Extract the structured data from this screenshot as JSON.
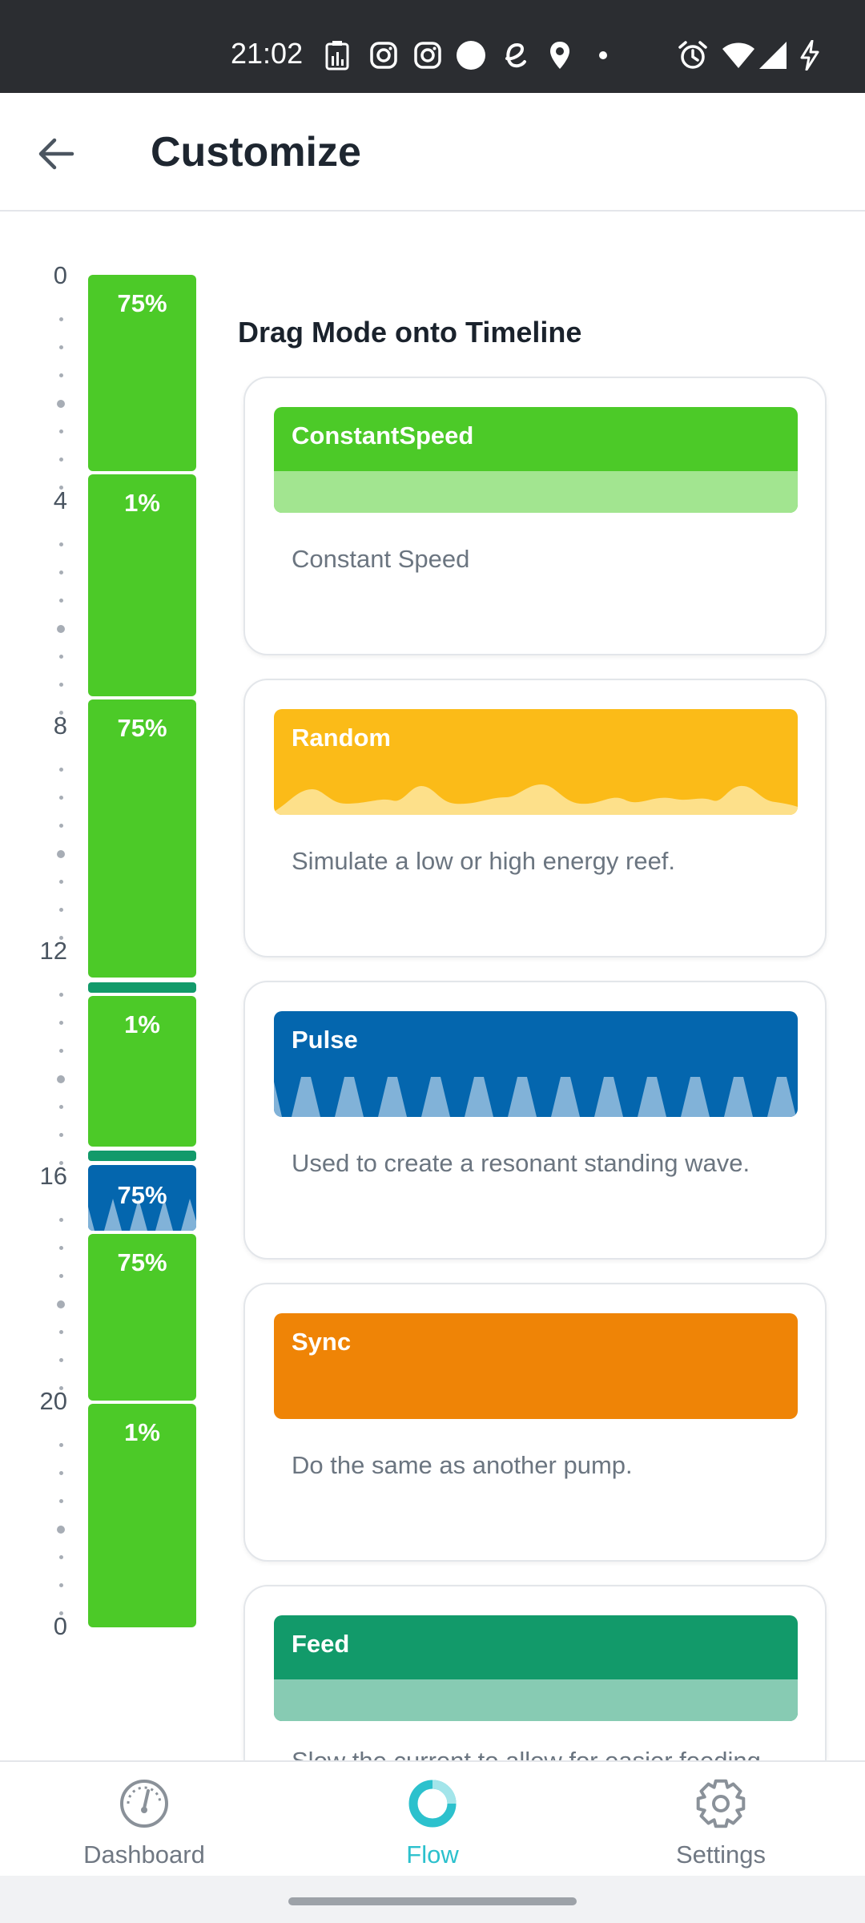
{
  "status_bar": {
    "time": "21:02",
    "left_icons": [
      "battery-report-icon",
      "instagram-icon",
      "instagram-icon",
      "circle-icon",
      "e-icon",
      "location-icon",
      "dot-icon"
    ],
    "right_icons": [
      "alarm-icon",
      "wifi-icon",
      "signal-icon",
      "charging-icon"
    ]
  },
  "app_bar": {
    "back_icon": "back-arrow-icon",
    "title": "Customize"
  },
  "timeline": {
    "tick_labels": [
      "0",
      "4",
      "8",
      "12",
      "16",
      "20",
      "0"
    ],
    "segments": [
      {
        "label": "75%",
        "mode": "ConstantSpeed"
      },
      {
        "label": "1%",
        "mode": "ConstantSpeed"
      },
      {
        "label": "75%",
        "mode": "ConstantSpeed"
      },
      {
        "label": "",
        "mode": "Feed"
      },
      {
        "label": "1%",
        "mode": "ConstantSpeed"
      },
      {
        "label": "",
        "mode": "Feed"
      },
      {
        "label": "75%",
        "mode": "Pulse"
      },
      {
        "label": "75%",
        "mode": "ConstantSpeed"
      },
      {
        "label": "1%",
        "mode": "ConstantSpeed"
      }
    ]
  },
  "modes_section": {
    "title": "Drag Mode onto Timeline",
    "modes": [
      {
        "name": "ConstantSpeed",
        "description": "Constant Speed",
        "color": "#4cca28",
        "band_color": "#a2e590",
        "pattern": "flat"
      },
      {
        "name": "Random",
        "description": "Simulate a low or high energy reef.",
        "color": "#fbbb18",
        "band_color": "#fde08a",
        "pattern": "waves"
      },
      {
        "name": "Pulse",
        "description": "Used to create a resonant standing wave.",
        "color": "#0466ae",
        "band_color": "#81b2d8",
        "pattern": "triangles"
      },
      {
        "name": "Sync",
        "description": "Do the same as another pump.",
        "color": "#ef8406",
        "band_color": "#ef8406",
        "pattern": "none"
      },
      {
        "name": "Feed",
        "description": "Slow the current to allow for easier feeding.",
        "color": "#129a6a",
        "band_color": "#87cbb3",
        "pattern": "flat"
      }
    ]
  },
  "bottom_nav": {
    "items": [
      {
        "label": "Dashboard",
        "icon": "gauge-icon",
        "active": false
      },
      {
        "label": "Flow",
        "icon": "ring-icon",
        "active": true
      },
      {
        "label": "Settings",
        "icon": "gear-icon",
        "active": false
      }
    ],
    "active_color": "#2cc1cd"
  }
}
